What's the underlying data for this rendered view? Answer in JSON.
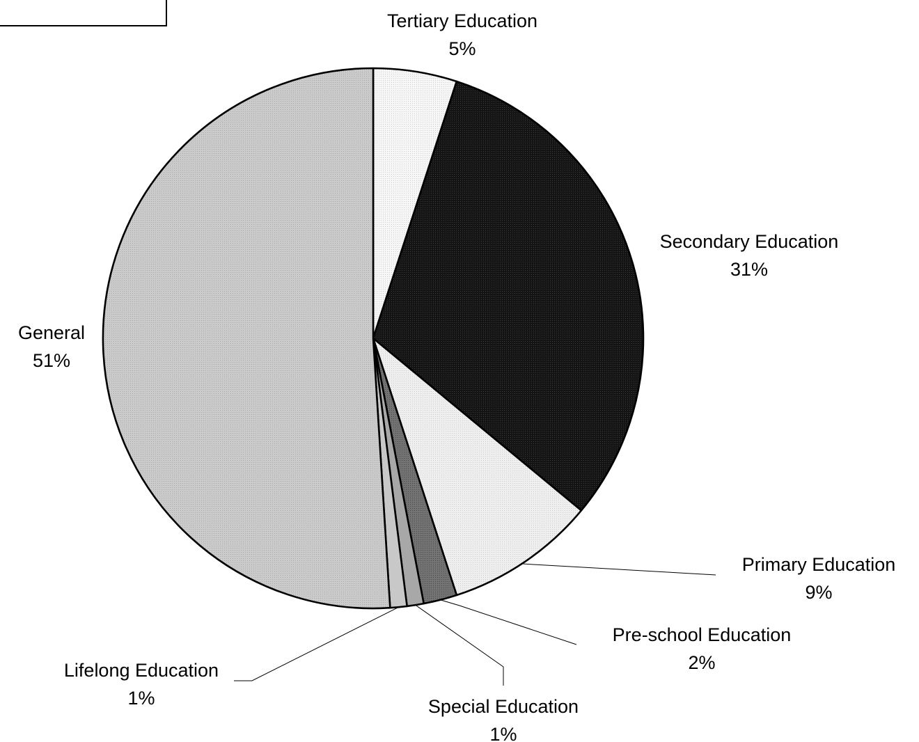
{
  "chart_data": {
    "type": "pie",
    "slices": [
      {
        "label": "Tertiary Education",
        "value": 5,
        "value_label": "5%",
        "fill": "#f3f3f3",
        "pattern": "fine-dots"
      },
      {
        "label": "Secondary Education",
        "value": 31,
        "value_label": "31%",
        "fill": "#161616",
        "pattern": "dark-dots"
      },
      {
        "label": "Primary Education",
        "value": 9,
        "value_label": "9%",
        "fill": "#ececec",
        "pattern": "light-dots"
      },
      {
        "label": "Pre-school Education",
        "value": 2,
        "value_label": "2%",
        "fill": "#6e6e6e",
        "pattern": "mid-dots"
      },
      {
        "label": "Special Education",
        "value": 1,
        "value_label": "1%",
        "fill": "#a8a8a8",
        "pattern": "none"
      },
      {
        "label": "Lifelong Education",
        "value": 1,
        "value_label": "1%",
        "fill": "#c8c8c8",
        "pattern": "none"
      },
      {
        "label": "General",
        "value": 51,
        "value_label": "51%",
        "fill": "#c6c6c6",
        "pattern": "grey-dots"
      }
    ],
    "start_angle": "12 o'clock",
    "direction": "clockwise",
    "labels": "outside with leader lines",
    "legend": "none"
  }
}
